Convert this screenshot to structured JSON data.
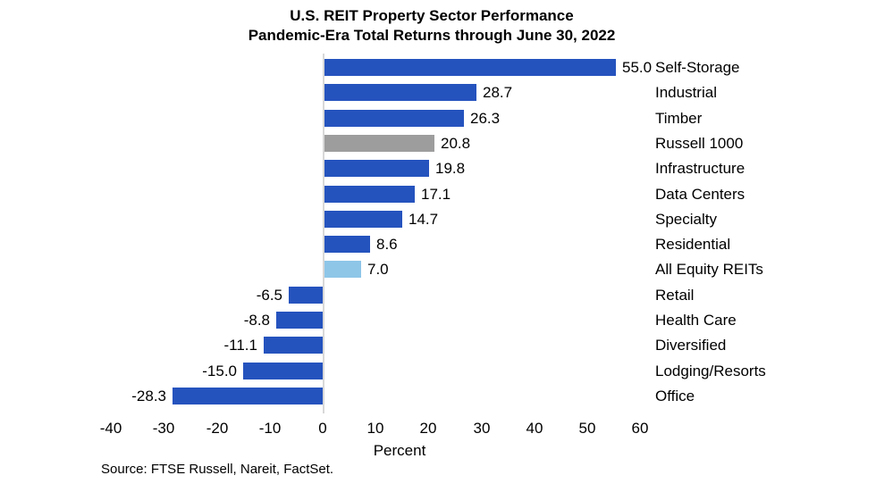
{
  "title": {
    "line1": "U.S. REIT Property Sector Performance",
    "line2": "Pandemic-Era Total Returns through June 30, 2022"
  },
  "chart_data": {
    "type": "bar",
    "orientation": "horizontal",
    "title": "U.S. REIT Property Sector Performance",
    "subtitle": "Pandemic-Era Total Returns through June 30, 2022",
    "categories": [
      "Self-Storage",
      "Industrial",
      "Timber",
      "Russell 1000",
      "Infrastructure",
      "Data Centers",
      "Specialty",
      "Residential",
      "All Equity REITs",
      "Retail",
      "Health Care",
      "Diversified",
      "Lodging/Resorts",
      "Office"
    ],
    "values": [
      55.0,
      28.7,
      26.3,
      20.8,
      19.8,
      17.1,
      14.7,
      8.6,
      7.0,
      -6.5,
      -8.8,
      -11.1,
      -15.0,
      -28.3
    ],
    "value_labels": [
      "55.0",
      "28.7",
      "26.3",
      "20.8",
      "19.8",
      "17.1",
      "14.7",
      "8.6",
      "7.0",
      "-6.5",
      "-8.8",
      "-11.1",
      "-15.0",
      "-28.3"
    ],
    "bar_color_keys": [
      "blue",
      "blue",
      "blue",
      "gray",
      "blue",
      "blue",
      "blue",
      "blue",
      "lightblue",
      "blue",
      "blue",
      "blue",
      "blue",
      "blue"
    ],
    "x_ticks": [
      -40,
      -30,
      -20,
      -10,
      0,
      10,
      20,
      30,
      40,
      50,
      60
    ],
    "xlim": [
      -40,
      60
    ],
    "xlabel": "Percent",
    "grid": "off",
    "legend": "none"
  },
  "colors": {
    "blue": "#2553BE",
    "gray": "#9D9D9D",
    "lightblue": "#8EC6E8",
    "axis_line": "#D8D8D8",
    "text": "#000000",
    "background": "#FFFFFF"
  },
  "source": "Source: FTSE Russell, Nareit, FactSet."
}
